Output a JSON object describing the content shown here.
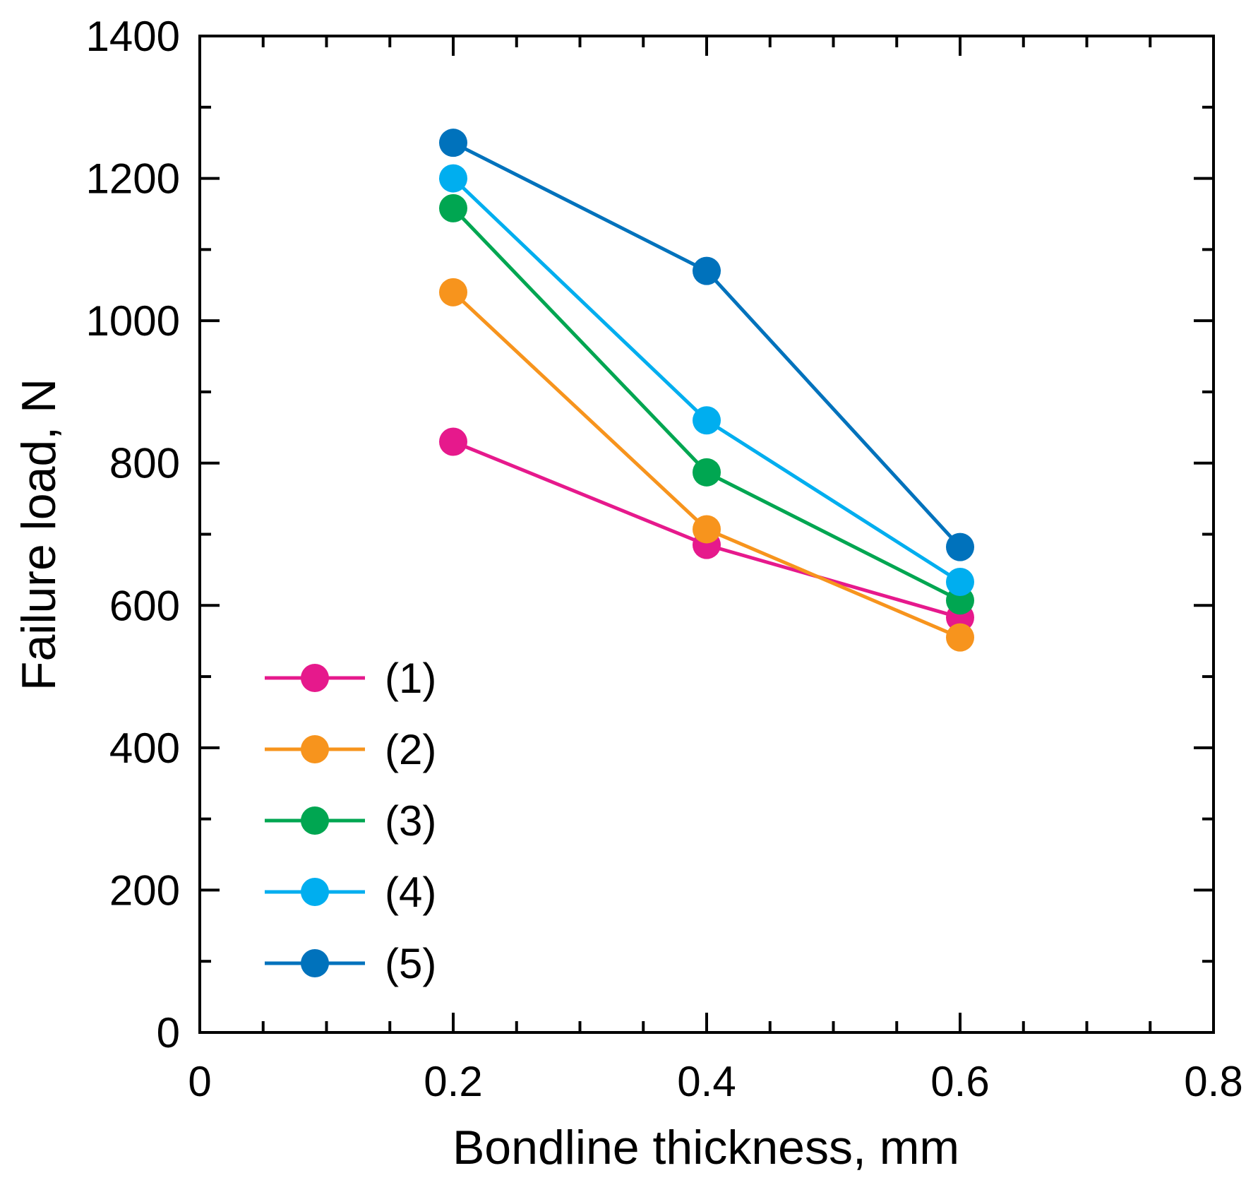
{
  "chart_data": {
    "type": "line",
    "title": "",
    "xlabel": "Bondline thickness, mm",
    "ylabel": "Failure load, N",
    "xlim": [
      0,
      0.8
    ],
    "ylim": [
      0,
      1400
    ],
    "x_major_ticks": [
      0,
      0.2,
      0.4,
      0.6,
      0.8
    ],
    "x_tick_labels": [
      "0",
      "0.2",
      "0.4",
      "0.6",
      "0.8"
    ],
    "x_minor_step": 0.05,
    "y_major_ticks": [
      0,
      200,
      400,
      600,
      800,
      1000,
      1200,
      1400
    ],
    "y_tick_labels": [
      "0",
      "200",
      "400",
      "600",
      "800",
      "1000",
      "1200",
      "1400"
    ],
    "y_minor_step": 100,
    "grid": false,
    "legend_position": "lower-left",
    "x": [
      0.2,
      0.4,
      0.6
    ],
    "series": [
      {
        "name": "(1)",
        "color": "#e6198c",
        "values": [
          830,
          685,
          583
        ]
      },
      {
        "name": "(2)",
        "color": "#f7941d",
        "values": [
          1040,
          707,
          555
        ]
      },
      {
        "name": "(3)",
        "color": "#00a651",
        "values": [
          1158,
          787,
          607
        ]
      },
      {
        "name": "(4)",
        "color": "#00aeef",
        "values": [
          1200,
          860,
          633
        ]
      },
      {
        "name": "(5)",
        "color": "#0072bc",
        "values": [
          1250,
          1070,
          682
        ]
      }
    ]
  }
}
